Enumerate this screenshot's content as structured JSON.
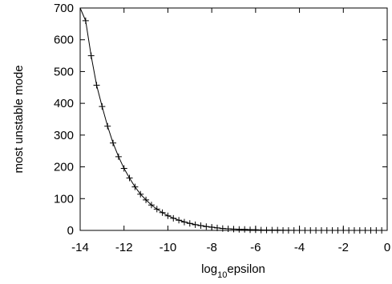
{
  "chart_data": {
    "type": "line",
    "title": "",
    "xlabel": "log",
    "xlabel_subscript": "10",
    "xlabel_suffix": "epsilon",
    "ylabel": "most unstable mode",
    "xlim": [
      -14,
      0
    ],
    "ylim": [
      0,
      700
    ],
    "x_ticks": [
      -14,
      -12,
      -10,
      -8,
      -6,
      -4,
      -2,
      0
    ],
    "x_tick_labels": [
      "-14",
      "-12",
      "-10",
      "-8",
      "-6",
      "-4",
      "-2",
      "0"
    ],
    "y_ticks": [
      0,
      100,
      200,
      300,
      400,
      500,
      600,
      700
    ],
    "y_tick_labels": [
      "0",
      "100",
      "200",
      "300",
      "400",
      "500",
      "600",
      "700"
    ],
    "grid": false,
    "legend": "none",
    "series": [
      {
        "style": "markers",
        "marker": "+",
        "color": "#000000",
        "x": [
          -13.75,
          -13.5,
          -13.25,
          -13.0,
          -12.75,
          -12.5,
          -12.25,
          -12.0,
          -11.75,
          -11.5,
          -11.25,
          -11.0,
          -10.75,
          -10.5,
          -10.25,
          -10.0,
          -9.75,
          -9.5,
          -9.25,
          -9.0,
          -8.75,
          -8.5,
          -8.25,
          -8.0,
          -7.75,
          -7.5,
          -7.25,
          -7.0,
          -6.75,
          -6.5,
          -6.25,
          -6.0,
          -5.75,
          -5.5,
          -5.25,
          -5.0,
          -4.75,
          -4.5,
          -4.25,
          -4.0,
          -3.75,
          -3.5,
          -3.25,
          -3.0,
          -2.75,
          -2.5,
          -2.25,
          -2.0,
          -1.75,
          -1.5,
          -1.25,
          -1.0,
          -0.75,
          -0.5,
          -0.25
        ],
        "y": [
          660,
          550,
          457,
          390,
          328,
          275,
          232,
          195,
          165,
          137,
          114,
          96,
          80,
          67,
          56,
          46,
          38,
          32,
          26,
          22,
          18,
          15,
          12,
          10,
          8,
          6,
          5,
          4,
          3,
          3,
          2,
          2,
          1,
          1,
          1,
          1,
          0,
          0,
          0,
          0,
          0,
          0,
          0,
          0,
          0,
          0,
          0,
          0,
          0,
          0,
          0,
          0,
          0,
          0,
          0
        ]
      },
      {
        "style": "line",
        "color": "#000000",
        "x": [
          -14.0,
          -13.75,
          -13.5,
          -13.25,
          -13.0,
          -12.75,
          -12.5,
          -12.25,
          -12.0,
          -11.75,
          -11.5,
          -11.25,
          -11.0,
          -10.75,
          -10.5,
          -10.25,
          -10.0,
          -9.5,
          -9.0,
          -8.5,
          -8.0,
          -7.5,
          -7.0,
          -6.5,
          -6.0,
          -5.5,
          -5.0,
          -4.0,
          -3.0,
          -2.0,
          -1.0,
          0.0
        ],
        "y": [
          700,
          660,
          550,
          457,
          390,
          328,
          275,
          232,
          195,
          165,
          137,
          114,
          96,
          80,
          67,
          56,
          46,
          32,
          22,
          15,
          10,
          6,
          4,
          3,
          2,
          1,
          1,
          0,
          0,
          0,
          0,
          0
        ]
      }
    ]
  }
}
